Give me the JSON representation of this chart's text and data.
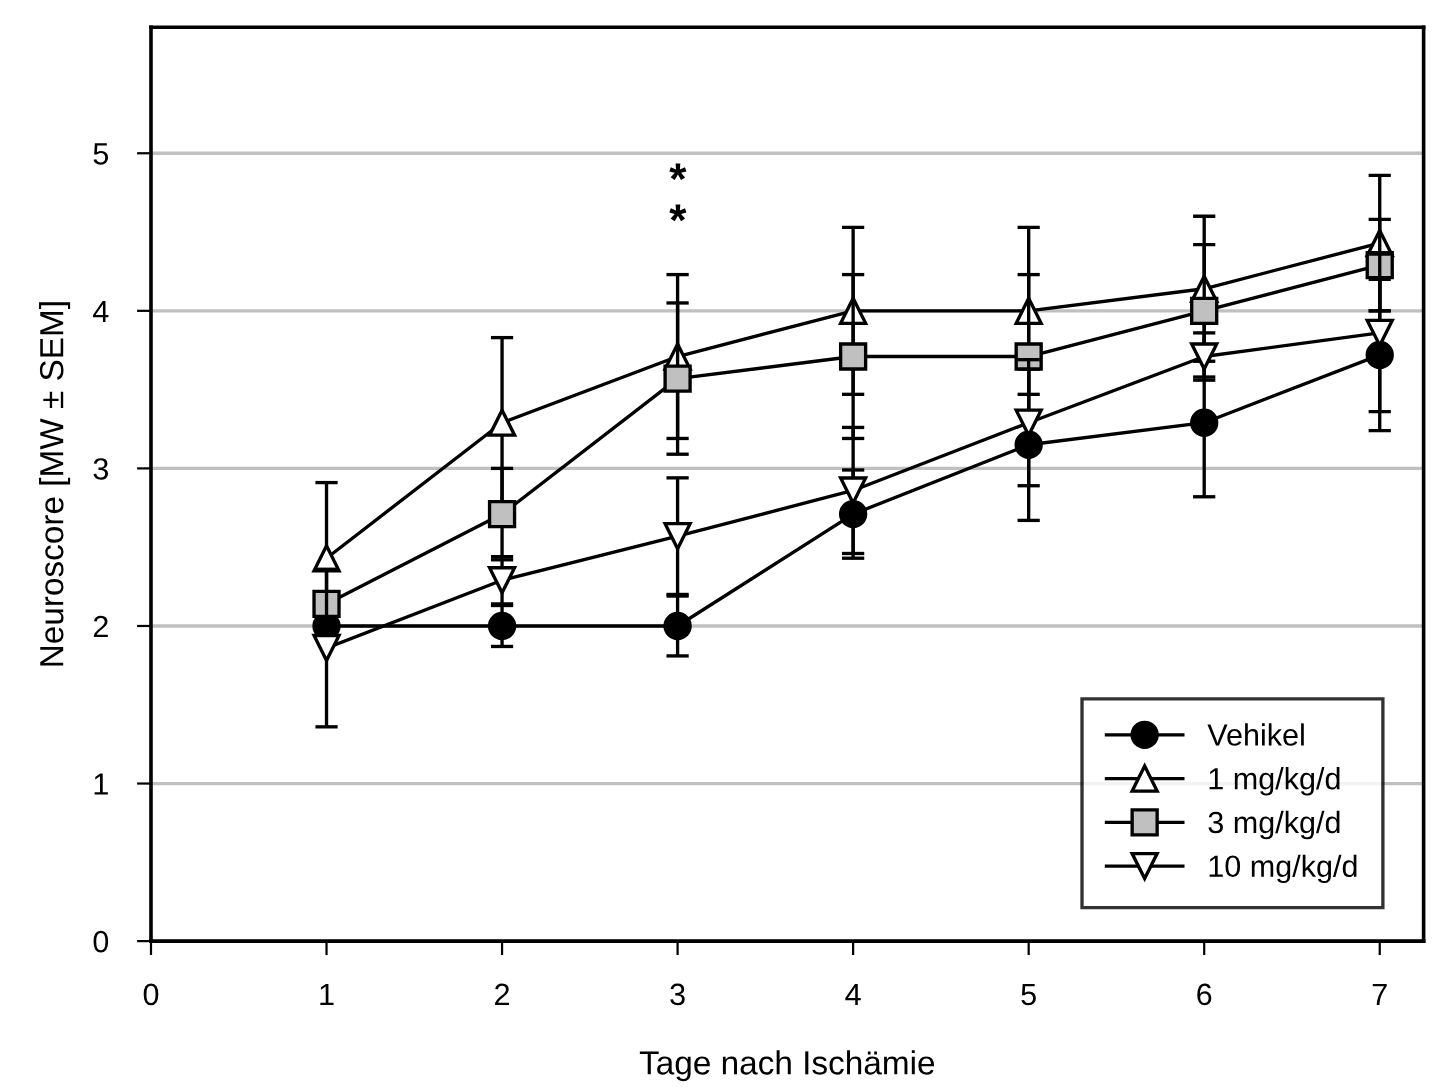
{
  "chart_data": {
    "type": "line",
    "xlabel": "Tage nach Ischämie",
    "ylabel": "Neuroscore [MW ± SEM]",
    "x": [
      1,
      2,
      3,
      4,
      5,
      6,
      7
    ],
    "series": [
      {
        "name": "Vehikel",
        "color": "#000000",
        "marker": "circle",
        "values": [
          2,
          2,
          2,
          2.71,
          3.15,
          3.29,
          3.72
        ],
        "errors": [
          0.05,
          0.13,
          0.19,
          0.28,
          0.48,
          0.47,
          0.48
        ]
      },
      {
        "name": "1 mg/kg/d",
        "color": "#ffffff",
        "marker": "triangle",
        "values": [
          2.43,
          3.29,
          3.71,
          4.0,
          4.0,
          4.14,
          4.43
        ],
        "errors": [
          0.48,
          0.54,
          0.52,
          0.53,
          0.53,
          0.46,
          0.43
        ]
      },
      {
        "name": "3 mg/kg/d",
        "color": "#c0c0c0",
        "marker": "square",
        "values": [
          2.14,
          2.71,
          3.57,
          3.71,
          3.71,
          4.0,
          4.29
        ],
        "errors": [
          0.05,
          0.29,
          0.48,
          0.52,
          0.52,
          0.42,
          0.29
        ]
      },
      {
        "name": "10 mg/kg/d",
        "color": "#ffffff",
        "marker": "triangle_down",
        "values": [
          1.86,
          2.29,
          2.57,
          2.86,
          3.29,
          3.71,
          3.86
        ],
        "errors": [
          0.5,
          0.15,
          0.37,
          0.4,
          0.4,
          0.15,
          0.5
        ]
      }
    ],
    "annotations": [
      "*",
      "*"
    ],
    "xlim": [
      0,
      7.25
    ],
    "ylim": [
      0,
      5.8
    ],
    "xticks": [
      0,
      1,
      2,
      3,
      4,
      5,
      6,
      7
    ],
    "yticks": [
      0,
      1,
      2,
      3,
      4,
      5
    ],
    "grid": "y",
    "legend": "lower right",
    "line_style": "solid"
  }
}
